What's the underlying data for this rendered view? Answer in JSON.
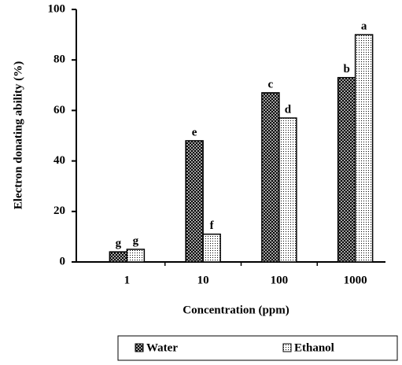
{
  "chart_data": {
    "type": "bar",
    "x_label": "Concentration (ppm)",
    "y_label": "Electron donating ability (%)",
    "categories": [
      "1",
      "10",
      "100",
      "1000"
    ],
    "series": [
      {
        "name": "Water",
        "color": "#555555",
        "values": [
          4,
          48,
          67,
          73
        ],
        "labels": [
          "g",
          "e",
          "c",
          "b"
        ]
      },
      {
        "name": "Ethanol",
        "color": "#dddddd",
        "values": [
          5,
          11,
          57,
          90
        ],
        "labels": [
          "g",
          "f",
          "d",
          "a"
        ]
      }
    ],
    "ylim": [
      0,
      100
    ],
    "yticks": [
      0,
      20,
      40,
      60,
      80,
      100
    ],
    "legend": "bottom"
  }
}
